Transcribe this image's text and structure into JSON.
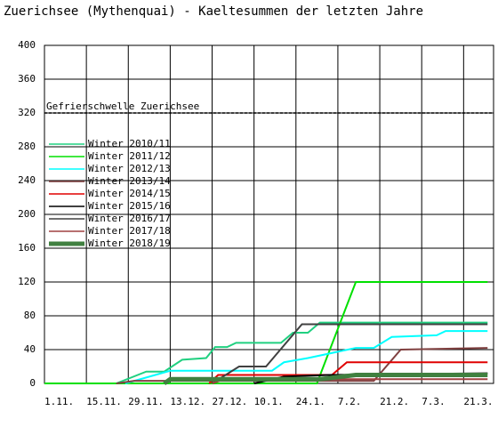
{
  "chart_data": {
    "type": "line",
    "title": "Zuerichsee (Mythenquai) - Kaeltesummen der letzten Jahre",
    "xlim": [
      0,
      150
    ],
    "ylim": [
      0,
      400
    ],
    "xticks": [
      {
        "value": 0,
        "label": "1.11."
      },
      {
        "value": 14,
        "label": "15.11."
      },
      {
        "value": 28,
        "label": "29.11."
      },
      {
        "value": 42,
        "label": "13.12."
      },
      {
        "value": 56,
        "label": "27.12."
      },
      {
        "value": 70,
        "label": "10.1."
      },
      {
        "value": 84,
        "label": "24.1."
      },
      {
        "value": 98,
        "label": "7.2."
      },
      {
        "value": 112,
        "label": "21.2."
      },
      {
        "value": 126,
        "label": "7.3."
      },
      {
        "value": 140,
        "label": "21.3."
      }
    ],
    "yticks": [
      0,
      40,
      80,
      120,
      160,
      200,
      240,
      280,
      320,
      360,
      400
    ],
    "grid": true,
    "annotations": [
      {
        "text": "Gefrierschwelle Zuerichsee",
        "value": 320
      }
    ],
    "series": [
      {
        "name": "Winter 2010/11",
        "color": "#20d080",
        "x": [
          24,
          34,
          40,
          46,
          54,
          57,
          61,
          64,
          79,
          83,
          88,
          92,
          148
        ],
        "values": [
          0,
          14,
          14,
          28,
          30,
          43,
          43,
          48,
          48,
          60,
          60,
          72,
          72
        ]
      },
      {
        "name": "Winter 2011/12",
        "color": "#00e000",
        "x": [
          0,
          91,
          104,
          148
        ],
        "values": [
          0,
          0,
          120,
          120
        ]
      },
      {
        "name": "Winter 2012/13",
        "color": "#00ffff",
        "x": [
          27,
          42,
          76,
          80,
          88,
          104,
          110,
          116,
          131,
          134,
          148
        ],
        "values": [
          0,
          15,
          15,
          25,
          30,
          42,
          42,
          55,
          57,
          62,
          62
        ]
      },
      {
        "name": "Winter 2013/14",
        "color": "#804040",
        "x": [
          24,
          30,
          110,
          119,
          148
        ],
        "values": [
          0,
          3,
          3,
          40,
          42
        ]
      },
      {
        "name": "Winter 2014/15",
        "color": "#e00000",
        "x": [
          55,
          58,
          96,
          101,
          148
        ],
        "values": [
          0,
          10,
          10,
          25,
          25
        ]
      },
      {
        "name": "Winter 2015/16",
        "color": "#000000",
        "x": [
          70,
          80,
          95,
          148
        ],
        "values": [
          0,
          8,
          10,
          12
        ]
      },
      {
        "name": "Winter 2016/17",
        "color": "#404040",
        "x": [
          56,
          65,
          74,
          80,
          86,
          148
        ],
        "values": [
          0,
          20,
          20,
          45,
          70,
          70
        ]
      },
      {
        "name": "Winter 2017/18",
        "color": "#a04040",
        "x": [
          56,
          60,
          148
        ],
        "values": [
          0,
          5,
          5
        ]
      },
      {
        "name": "Winter 2018/19",
        "color": "#408040",
        "width": 5,
        "x": [
          40,
          42,
          92,
          104,
          148
        ],
        "values": [
          0,
          5,
          5,
          10,
          10
        ]
      }
    ]
  }
}
